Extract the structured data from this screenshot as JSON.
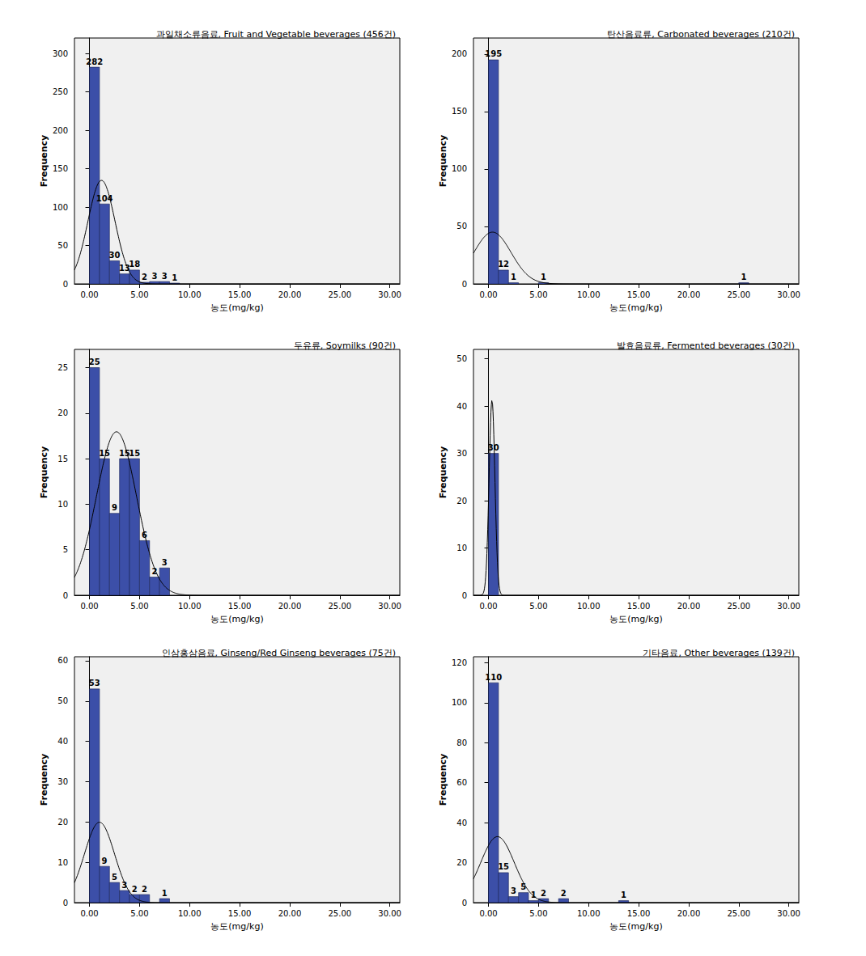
{
  "chart_data": [
    {
      "type": "histogram",
      "title": "과일채소류음료, Fruit and Vegetable beverages (456건)",
      "x_label": "농도(mg/kg)",
      "y_label": "Frequency",
      "bins": [
        0,
        1,
        2,
        3,
        4,
        5,
        6,
        7,
        8,
        9
      ],
      "values": [
        282,
        104,
        30,
        13,
        18,
        2,
        3,
        3,
        1
      ],
      "fit": {
        "mean": 1.2,
        "sd": 1.35
      },
      "color": "#3c4fa8",
      "data_labels": true,
      "grid": false,
      "xlim": [
        -1.5,
        31
      ],
      "xticks": [
        {
          "value": 0,
          "label": "0.00"
        },
        {
          "value": 5,
          "label": "5.00"
        },
        {
          "value": 10,
          "label": "10.00"
        },
        {
          "value": 15,
          "label": "15.00"
        },
        {
          "value": 20,
          "label": "20.00"
        },
        {
          "value": 25,
          "label": "25.00"
        },
        {
          "value": 30,
          "label": "30.00"
        }
      ],
      "ylim": [
        0,
        320
      ],
      "yticks": [
        0,
        50,
        100,
        150,
        200,
        250,
        300
      ]
    },
    {
      "type": "histogram",
      "title": "탄산음료류, Carbonated beverages (210건)",
      "x_label": "농도(mg/kg)",
      "y_label": "Frequency",
      "bins": [
        0,
        1,
        2,
        3,
        4,
        5,
        6,
        7,
        8,
        9,
        10,
        11,
        12,
        13,
        14,
        15,
        16,
        17,
        18,
        19,
        20,
        21,
        22,
        23,
        24,
        25,
        26
      ],
      "values": [
        195,
        12,
        1,
        0,
        0,
        1,
        0,
        0,
        0,
        0,
        0,
        0,
        0,
        0,
        0,
        0,
        0,
        0,
        0,
        0,
        0,
        0,
        0,
        0,
        0,
        1
      ],
      "fit": {
        "mean": 0.4,
        "sd": 1.86
      },
      "color": "#3c4fa8",
      "data_labels": true,
      "grid": false,
      "xlim": [
        -1.5,
        31
      ],
      "xticks": [
        {
          "value": 0,
          "label": "0.00"
        },
        {
          "value": 5,
          "label": "5.00"
        },
        {
          "value": 10,
          "label": "10.00"
        },
        {
          "value": 15,
          "label": "15.00"
        },
        {
          "value": 20,
          "label": "20.00"
        },
        {
          "value": 25,
          "label": "25.00"
        },
        {
          "value": 30,
          "label": "30.00"
        }
      ],
      "ylim": [
        0,
        214
      ],
      "yticks": [
        0,
        50,
        100,
        150,
        200
      ]
    },
    {
      "type": "histogram",
      "title": "두유류, Soymilks (90건)",
      "x_label": "농도(mg/kg)",
      "y_label": "Frequency",
      "bins": [
        0,
        1,
        2,
        3,
        4,
        5,
        6,
        7,
        8
      ],
      "values": [
        25,
        15,
        9,
        15,
        15,
        6,
        2,
        3
      ],
      "fit": {
        "mean": 2.7,
        "sd": 2.0
      },
      "color": "#3c4fa8",
      "data_labels": true,
      "grid": false,
      "xlim": [
        -1.5,
        31
      ],
      "xticks": [
        {
          "value": 0,
          "label": "0.00"
        },
        {
          "value": 5,
          "label": "5.00"
        },
        {
          "value": 10,
          "label": "10.00"
        },
        {
          "value": 15,
          "label": "15.00"
        },
        {
          "value": 20,
          "label": "20.00"
        },
        {
          "value": 25,
          "label": "25.00"
        },
        {
          "value": 30,
          "label": "30.00"
        }
      ],
      "ylim": [
        0,
        27
      ],
      "yticks": [
        0,
        5,
        10,
        15,
        20,
        25
      ]
    },
    {
      "type": "histogram",
      "title": "발효음료류, Fermented beverages (30건)",
      "x_label": "농도(mg/kg)",
      "y_label": "Frequency",
      "bins": [
        0,
        1
      ],
      "values": [
        30
      ],
      "fit": {
        "mean": 0.35,
        "sd": 0.29
      },
      "color": "#3c4fa8",
      "data_labels": true,
      "grid": false,
      "xlim": [
        -1.5,
        31
      ],
      "xticks": [
        {
          "value": 0,
          "label": "0.00"
        },
        {
          "value": 5,
          "label": "5.00"
        },
        {
          "value": 10,
          "label": "10.00"
        },
        {
          "value": 15,
          "label": "15.00"
        },
        {
          "value": 20,
          "label": "20.00"
        },
        {
          "value": 25,
          "label": "25.00"
        },
        {
          "value": 30,
          "label": "30.00"
        }
      ],
      "ylim": [
        0,
        52
      ],
      "yticks": [
        0,
        10,
        20,
        30,
        40,
        50
      ]
    },
    {
      "type": "histogram",
      "title": "인삼홍삼음료, Ginseng/Red Ginseng beverages (75건)",
      "x_label": "농도(mg/kg)",
      "y_label": "Frequency",
      "bins": [
        0,
        1,
        2,
        3,
        4,
        5,
        6,
        7,
        8
      ],
      "values": [
        53,
        9,
        5,
        3,
        2,
        2,
        0,
        1
      ],
      "fit": {
        "mean": 1.0,
        "sd": 1.5
      },
      "color": "#3c4fa8",
      "data_labels": true,
      "grid": false,
      "xlim": [
        -1.5,
        31
      ],
      "xticks": [
        {
          "value": 0,
          "label": "0.00"
        },
        {
          "value": 5,
          "label": "5.00"
        },
        {
          "value": 10,
          "label": "10.00"
        },
        {
          "value": 15,
          "label": "15.00"
        },
        {
          "value": 20,
          "label": "20.00"
        },
        {
          "value": 25,
          "label": "25.00"
        },
        {
          "value": 30,
          "label": "30.00"
        }
      ],
      "ylim": [
        0,
        61
      ],
      "yticks": [
        0,
        10,
        20,
        30,
        40,
        50,
        60
      ]
    },
    {
      "type": "histogram",
      "title": "기타음료, Other beverages (139건)",
      "x_label": "농도(mg/kg)",
      "y_label": "Frequency",
      "bins": [
        0,
        1,
        2,
        3,
        4,
        5,
        6,
        7,
        8,
        9,
        10,
        11,
        12,
        13,
        14
      ],
      "values": [
        110,
        15,
        3,
        5,
        1,
        2,
        0,
        2,
        0,
        0,
        0,
        0,
        0,
        1
      ],
      "fit": {
        "mean": 0.9,
        "sd": 1.68
      },
      "color": "#3c4fa8",
      "data_labels": true,
      "grid": false,
      "xlim": [
        -1.5,
        31
      ],
      "xticks": [
        {
          "value": 0,
          "label": "0.00"
        },
        {
          "value": 5,
          "label": "5.00"
        },
        {
          "value": 10,
          "label": "10.00"
        },
        {
          "value": 15,
          "label": "15.00"
        },
        {
          "value": 20,
          "label": "20.00"
        },
        {
          "value": 25,
          "label": "25.00"
        },
        {
          "value": 30,
          "label": "30.00"
        }
      ],
      "ylim": [
        0,
        123
      ],
      "yticks": [
        0,
        20,
        40,
        60,
        80,
        100,
        120
      ]
    }
  ]
}
